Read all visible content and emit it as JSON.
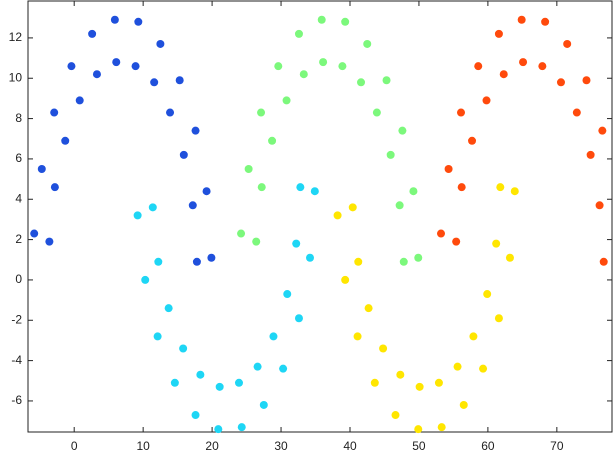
{
  "chart_data": {
    "type": "scatter",
    "xlim": [
      -6.7,
      78
    ],
    "ylim": [
      -7.54,
      13.83
    ],
    "xticks": [
      0,
      10,
      20,
      30,
      40,
      50,
      60,
      70
    ],
    "yticks": [
      -6,
      -4,
      -2,
      0,
      2,
      4,
      6,
      8,
      10,
      12
    ],
    "series": [
      {
        "color": "#1f50dc",
        "x": [
          17.8,
          17.2,
          15.9,
          13.9,
          11.6,
          8.9,
          6.1,
          3.3,
          0.8,
          -1.3,
          -2.8,
          -3.6,
          19.9,
          19.2,
          17.6,
          15.3,
          12.5,
          9.3,
          5.9,
          2.6,
          -0.4,
          -2.9,
          -4.7,
          -5.8
        ],
        "y": [
          0.9,
          3.7,
          6.2,
          8.3,
          9.8,
          10.6,
          10.8,
          10.2,
          8.9,
          6.9,
          4.6,
          1.9,
          1.1,
          4.4,
          7.4,
          9.9,
          11.7,
          12.8,
          12.9,
          12.2,
          10.6,
          8.3,
          5.5,
          2.3
        ]
      },
      {
        "color": "#1ed6f5",
        "x": [
          32.8,
          32.2,
          30.9,
          28.9,
          26.6,
          23.9,
          21.1,
          18.3,
          15.8,
          13.7,
          12.2,
          11.4,
          34.9,
          34.2,
          32.6,
          30.3,
          27.5,
          24.3,
          20.9,
          17.6,
          14.6,
          12.1,
          10.3,
          9.2
        ],
        "y": [
          4.6,
          1.8,
          -0.7,
          -2.8,
          -4.3,
          -5.1,
          -5.3,
          -4.7,
          -3.4,
          -1.4,
          0.9,
          3.6,
          4.4,
          1.1,
          -1.9,
          -4.4,
          -6.2,
          -7.3,
          -7.4,
          -6.7,
          -5.1,
          -2.8,
          0.0,
          3.2
        ]
      },
      {
        "color": "#7cf87c",
        "x": [
          47.8,
          47.2,
          45.9,
          43.9,
          41.6,
          38.9,
          36.1,
          33.3,
          30.8,
          28.7,
          27.2,
          26.4,
          49.9,
          49.2,
          47.6,
          45.3,
          42.5,
          39.3,
          35.9,
          32.6,
          29.6,
          27.1,
          25.3,
          24.2
        ],
        "y": [
          0.9,
          3.7,
          6.2,
          8.3,
          9.8,
          10.6,
          10.8,
          10.2,
          8.9,
          6.9,
          4.6,
          1.9,
          1.1,
          4.4,
          7.4,
          9.9,
          11.7,
          12.8,
          12.9,
          12.2,
          10.6,
          8.3,
          5.5,
          2.3
        ]
      },
      {
        "color": "#ffe600",
        "x": [
          61.8,
          61.2,
          59.9,
          57.9,
          55.6,
          52.9,
          50.1,
          47.3,
          44.8,
          42.7,
          41.2,
          40.4,
          63.9,
          63.2,
          61.6,
          59.3,
          56.5,
          53.3,
          49.9,
          46.6,
          43.6,
          41.1,
          39.3,
          38.2
        ],
        "y": [
          4.6,
          1.8,
          -0.7,
          -2.8,
          -4.3,
          -5.1,
          -5.3,
          -4.7,
          -3.4,
          -1.4,
          0.9,
          3.6,
          4.4,
          1.1,
          -1.9,
          -4.4,
          -6.2,
          -7.3,
          -7.4,
          -6.7,
          -5.1,
          -2.8,
          0.0,
          3.2
        ]
      },
      {
        "color": "#ff4a0c",
        "x": [
          76.8,
          76.2,
          74.9,
          72.9,
          70.6,
          67.9,
          65.1,
          62.3,
          59.8,
          57.7,
          56.2,
          55.4,
          76.6,
          74.3,
          71.5,
          68.3,
          64.9,
          61.6,
          58.6,
          56.1,
          54.3,
          53.2
        ],
        "y": [
          0.9,
          3.7,
          6.2,
          8.3,
          9.8,
          10.6,
          10.8,
          10.2,
          8.9,
          6.9,
          4.6,
          1.9,
          7.4,
          9.9,
          11.7,
          12.8,
          12.9,
          12.2,
          10.6,
          8.3,
          5.5,
          2.3
        ]
      }
    ]
  }
}
